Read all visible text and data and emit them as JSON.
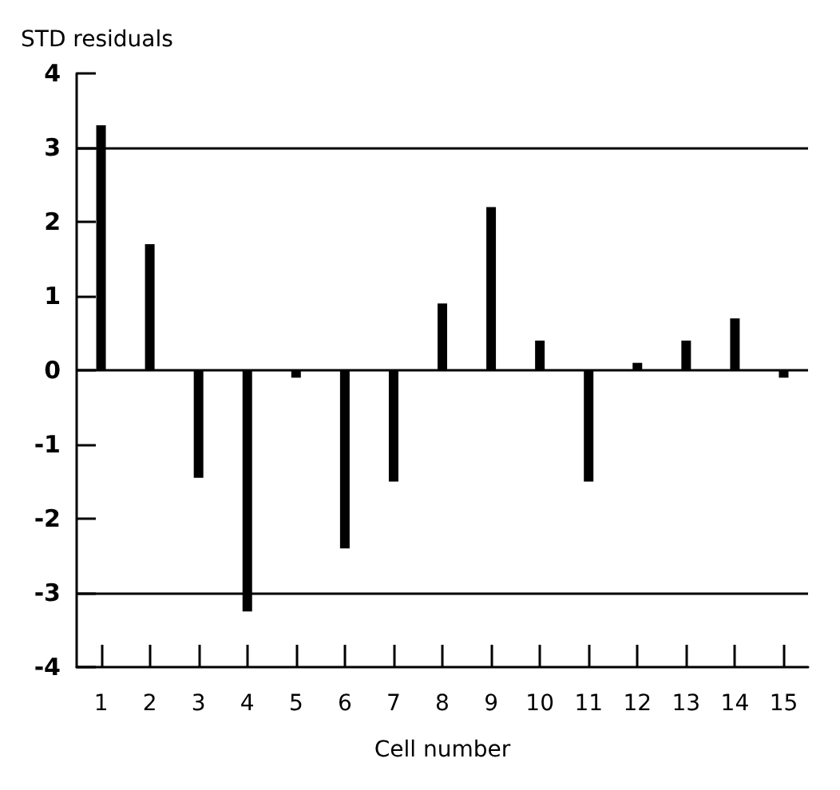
{
  "chart_data": {
    "type": "bar",
    "ylabel": "STD residuals",
    "xlabel": "Cell number",
    "categories": [
      "1",
      "2",
      "3",
      "4",
      "5",
      "6",
      "7",
      "8",
      "9",
      "10",
      "11",
      "12",
      "13",
      "14",
      "15"
    ],
    "values": [
      3.3,
      1.7,
      -1.45,
      -3.25,
      -0.1,
      -2.4,
      -1.5,
      0.9,
      2.2,
      0.4,
      -1.5,
      0.1,
      0.4,
      0.7,
      -0.1
    ],
    "color": "#000000",
    "ylim": [
      -4,
      4
    ],
    "yticks": [
      -4,
      -3,
      -2,
      -1,
      0,
      1,
      2,
      3,
      4
    ],
    "ref_lines": [
      {
        "axis": "y",
        "value": 3,
        "label": null
      },
      {
        "axis": "y",
        "value": 0,
        "label": null
      },
      {
        "axis": "y",
        "value": -3,
        "label": null
      }
    ],
    "grid": false
  }
}
